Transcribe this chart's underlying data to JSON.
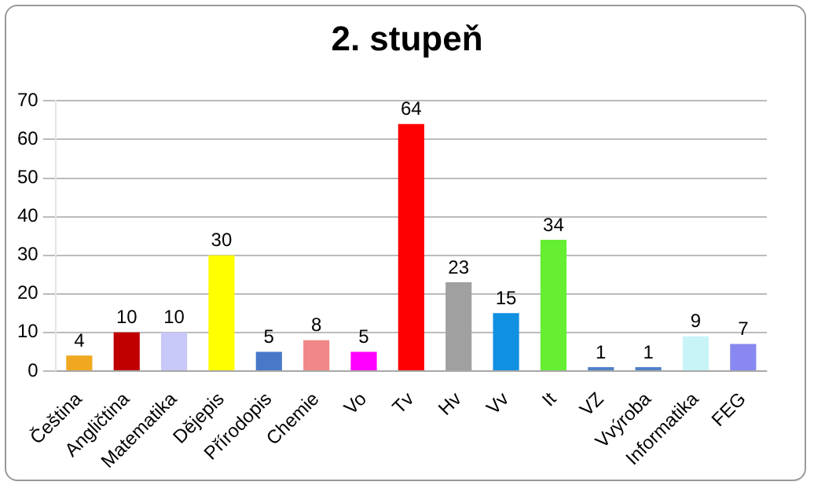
{
  "chart_data": {
    "type": "bar",
    "title": "2. stupeň",
    "categories": [
      "Čeština",
      "Angličtina",
      "Matematika",
      "Dějepis",
      "Přírodopis",
      "Chemie",
      "Vo",
      "Tv",
      "Hv",
      "Vv",
      "It",
      "VZ",
      "Vvýroba",
      "Informatika",
      "FEG"
    ],
    "values": [
      4,
      10,
      10,
      30,
      5,
      8,
      5,
      64,
      23,
      15,
      34,
      1,
      1,
      9,
      7
    ],
    "colors": [
      "#f0a820",
      "#c00000",
      "#c8c8f8",
      "#ffff00",
      "#4a78c8",
      "#f08888",
      "#ff00ff",
      "#ff0000",
      "#a0a0a0",
      "#1090e0",
      "#66ee33",
      "#5080c8",
      "#5080c8",
      "#c8f4f8",
      "#8888f0"
    ],
    "ylim": [
      0,
      70
    ],
    "yticks": [
      0,
      10,
      20,
      30,
      40,
      50,
      60,
      70
    ],
    "grid": "y",
    "data_labels": true,
    "legend": false
  }
}
